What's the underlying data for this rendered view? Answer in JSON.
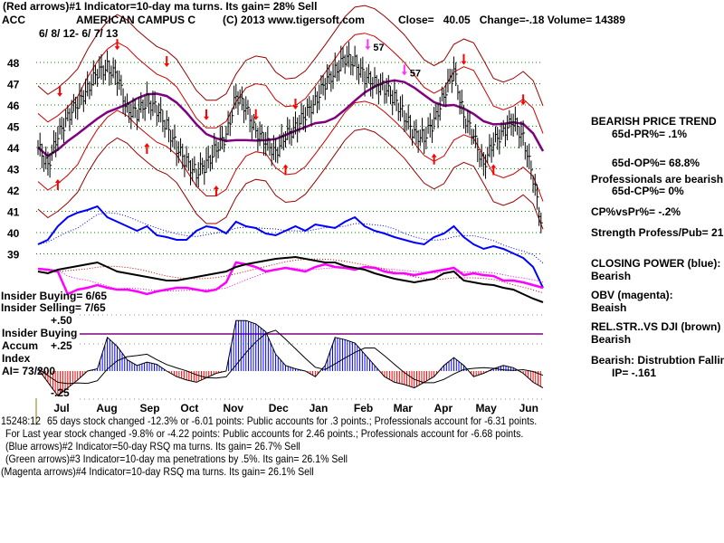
{
  "header": {
    "line1": "(Red arrows)#1 Indicator=10-day ma turns. Its gain= 28% Sell",
    "ticker": "ACC",
    "company": "AMERICAN CAMPUS C",
    "copyright": "(C) 2013 www.tigersoft.com",
    "quote": "Close=   40.05   Change=-.18 Volume= 14389",
    "date_range": "6/ 8/ 12- 6/ 7/ 13"
  },
  "right_panel": {
    "trend": "BEARISH PRICE TREND",
    "pr": "65d-PR%= .1%",
    "op": "65d-OP%= 68.8%",
    "prof": "Professionals are bearish",
    "cp": "65d-CP%= 0%",
    "cpvspr": "CP%vsPr%= -.2%",
    "strength": "Strength Profess/Pub= 21",
    "closing_power": "CLOSING POWER (blue):",
    "closing_power_val": "Bearish",
    "obv": "OBV (magenta):",
    "obv_val": "Beaish",
    "relstr": "REL.STR..VS DJI (brown)",
    "relstr_val": "Bearish",
    "distribution": "Bearish: Distrubtion Falling",
    "ip": "IP= -.161"
  },
  "left_panel": {
    "insider_buying": "Insider Buying= 6/65",
    "insider_selling": "Insider Selling= 7/65",
    "plus50": "+.50",
    "insider_buying_line": "Insider Buying",
    "accum": "Accum",
    "index": "Index",
    "ai": "AI= 73/200",
    "plus25": "+.25",
    "minus25": "-.25"
  },
  "footer": {
    "overlap": "15248:12",
    "line1": "65 days stock changed -12.3% or -6.01 points:  Public accounts for  .3 points.;  Professionals account for -6.31 points.",
    "line2": "For Last year stock changed -9.8% or -4.22 points:  Public accounts for  2.46 points.;  Professionals account for -6.68 points.",
    "line3": "(Blue arrows)#2 Indicator=50-day RSQ ma turns. Its gain= 26.7% Sell",
    "line4": "(Green arrows)#3 Indicator=10-day ma penetrations by .5%. Its gain= 26.1% Sell",
    "line5": "(Magenta arrows)#4 Indicator=10-day RSQ ma turns. Its gain= 26.1% Sell"
  },
  "chart_data": {
    "type": "line",
    "title": "ACC AMERICAN CAMPUS C",
    "price_ticks": [
      "48",
      "47",
      "46",
      "45",
      "44",
      "43",
      "42",
      "41",
      "40",
      "39"
    ],
    "price_levels": [
      48,
      47,
      46,
      45,
      44,
      43,
      42,
      41,
      40,
      39
    ],
    "months": [
      "Jul",
      "Aug",
      "Sep",
      "Oct",
      "Nov",
      "Dec",
      "Jan",
      "Feb",
      "Mar",
      "Apr",
      "May",
      "Jun"
    ],
    "month_week": [
      2.5,
      6.8,
      11.2,
      15.3,
      19.6,
      24.2,
      28.3,
      32.8,
      36.8,
      40.9,
      45.1,
      49.5
    ],
    "weekly_close": [
      44,
      43.2,
      44.5,
      45.5,
      46,
      46.8,
      47.5,
      47.8,
      47.3,
      45.8,
      45.6,
      46.2,
      45.8,
      45,
      44,
      43.3,
      42.8,
      43.2,
      44,
      44.5,
      46.5,
      45.8,
      44.8,
      44.2,
      43.8,
      44.5,
      45,
      45.5,
      46.2,
      47,
      47.6,
      48.2,
      48,
      47.3,
      47,
      46.8,
      46.3,
      45.5,
      44.6,
      44.5,
      45.2,
      46.5,
      47.6,
      45.5,
      44.5,
      43.2,
      44.2,
      44.8,
      45.2,
      44.5,
      42.5,
      40.05
    ],
    "closing_power": [
      50,
      55,
      70,
      80,
      85,
      88,
      92,
      80,
      75,
      70,
      65,
      70,
      60,
      58,
      55,
      55,
      65,
      70,
      68,
      62,
      75,
      70,
      68,
      62,
      60,
      65,
      70,
      65,
      72,
      70,
      68,
      75,
      80,
      70,
      65,
      62,
      58,
      55,
      52,
      50,
      58,
      62,
      70,
      58,
      50,
      45,
      48,
      45,
      40,
      35,
      25,
      2
    ],
    "obv": [
      43,
      42,
      40,
      15,
      20,
      22,
      25,
      22,
      20,
      20,
      18,
      15,
      18,
      20,
      22,
      22,
      20,
      18,
      20,
      28,
      50,
      48,
      45,
      40,
      42,
      44,
      42,
      40,
      45,
      48,
      45,
      44,
      42,
      45,
      44,
      40,
      38,
      38,
      36,
      38,
      40,
      42,
      44,
      36,
      38,
      36,
      35,
      30,
      30,
      28,
      25,
      22
    ],
    "rel_strength": [
      40,
      38,
      42,
      44,
      46,
      48,
      50,
      45,
      40,
      38,
      36,
      34,
      32,
      30,
      30,
      32,
      34,
      36,
      38,
      40,
      45,
      48,
      50,
      52,
      54,
      55,
      56,
      54,
      52,
      50,
      50,
      46,
      44,
      42,
      38,
      35,
      32,
      30,
      28,
      30,
      32,
      38,
      40,
      30,
      28,
      26,
      25,
      22,
      20,
      15,
      10,
      6
    ],
    "accum_index": [
      0.02,
      -0.1,
      -0.22,
      -0.15,
      -0.08,
      0.0,
      0.02,
      0.3,
      0.22,
      0.1,
      0.05,
      0.08,
      0.06,
      0.0,
      -0.05,
      -0.08,
      -0.1,
      -0.06,
      -0.02,
      0.0,
      0.45,
      0.45,
      0.42,
      0.35,
      0.15,
      0.05,
      0.02,
      0.0,
      -0.05,
      0.05,
      0.3,
      0.28,
      0.25,
      0.15,
      0.05,
      -0.05,
      -0.1,
      -0.12,
      -0.15,
      -0.1,
      -0.05,
      0.05,
      0.12,
      0.05,
      -0.05,
      -0.02,
      0.02,
      0.05,
      0.03,
      -0.02,
      -0.1,
      -0.15
    ],
    "arrows": [
      {
        "week": 2.2,
        "price": 46.6,
        "dir": "down",
        "color": "#ff0000"
      },
      {
        "week": 8,
        "price": 48.8,
        "dir": "down",
        "color": "#ff0000"
      },
      {
        "week": 13,
        "price": 48,
        "dir": "down",
        "color": "#ff0000"
      },
      {
        "week": 17,
        "price": 45.5,
        "dir": "down",
        "color": "#ff0000"
      },
      {
        "week": 22,
        "price": 45.5,
        "dir": "down",
        "color": "#ff0000"
      },
      {
        "week": 26,
        "price": 46,
        "dir": "down",
        "color": "#ff0000"
      },
      {
        "week": 43,
        "price": 48.1,
        "dir": "down",
        "color": "#ff0000"
      },
      {
        "week": 49,
        "price": 46.2,
        "dir": "down",
        "color": "#ff0000"
      },
      {
        "week": 2,
        "price": 42.3,
        "dir": "up",
        "color": "#ff0000"
      },
      {
        "week": 11,
        "price": 44,
        "dir": "up",
        "color": "#ff0000"
      },
      {
        "week": 18,
        "price": 42,
        "dir": "up",
        "color": "#ff0000"
      },
      {
        "week": 25,
        "price": 43,
        "dir": "up",
        "color": "#ff0000"
      },
      {
        "week": 40,
        "price": 43.5,
        "dir": "up",
        "color": "#ff0000"
      },
      {
        "week": 46,
        "price": 43,
        "dir": "up",
        "color": "#ff0000"
      },
      {
        "week": 33.3,
        "price": 48.8,
        "dir": "down",
        "color": "#ff33ff",
        "label": "57"
      },
      {
        "week": 37,
        "price": 47.6,
        "dir": "down",
        "color": "#ff33ff",
        "label": "57"
      }
    ],
    "colors": {
      "grid": "#008000",
      "band": "#cc0000",
      "outer_band": "#990000",
      "ma": "#800080",
      "cp": "#0000ff",
      "obv": "#ff00ff",
      "relstr": "#000000",
      "ai_pos": "#0000ff",
      "ai_neg": "#ff0000",
      "insider": "#800080"
    }
  }
}
